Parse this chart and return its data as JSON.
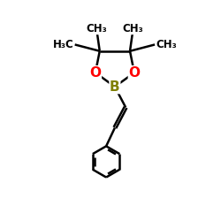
{
  "bg_color": "#ffffff",
  "atom_colors": {
    "B": "#808000",
    "O": "#ff0000",
    "C": "#000000"
  },
  "line_color": "#000000",
  "line_width": 1.8,
  "font_size_atom": 10,
  "font_size_methyl": 8.5,
  "figsize": [
    2.5,
    2.5
  ],
  "dpi": 100,
  "xlim": [
    0,
    10
  ],
  "ylim": [
    0,
    10
  ]
}
